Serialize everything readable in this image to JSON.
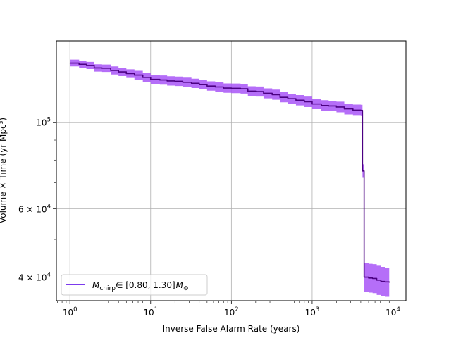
{
  "chart_data": {
    "type": "line",
    "title": "",
    "xlabel": "Inverse False Alarm Rate (years)",
    "ylabel": "Volume × Time (yr Mpc³)",
    "x_scale": "log",
    "y_scale": "log",
    "xlim": [
      0.68,
      14500
    ],
    "ylim": [
      34800,
      162000
    ],
    "grid": true,
    "legend_position": "lower-left",
    "x_ticks": [
      {
        "value": 1,
        "base": "10",
        "exp": "0"
      },
      {
        "value": 10,
        "base": "10",
        "exp": "1"
      },
      {
        "value": 100,
        "base": "10",
        "exp": "2"
      },
      {
        "value": 1000,
        "base": "10",
        "exp": "3"
      },
      {
        "value": 10000,
        "base": "10",
        "exp": "4"
      }
    ],
    "y_ticks": [
      {
        "value": 100000,
        "mantissa": "",
        "base": "10",
        "exp": "5"
      },
      {
        "value": 60000,
        "mantissa": "6 × ",
        "base": "10",
        "exp": "4"
      },
      {
        "value": 40000,
        "mantissa": "4 × ",
        "base": "10",
        "exp": "4"
      }
    ],
    "series": [
      {
        "name": "M_chirp ∈ [0.80, 1.30] M⊙",
        "legend_label": {
          "m": "M",
          "m_sub": "chirp",
          "range": "∈ [0.80, 1.30]",
          "msun": "M",
          "msun_sub": "⊙"
        },
        "color": "#4b0082",
        "band_color": "#a855f7",
        "x": [
          1.0,
          1.3,
          1.6,
          2.0,
          2.5,
          3.2,
          4.0,
          5.0,
          6.3,
          8.0,
          10.0,
          13.0,
          16.0,
          20.0,
          25.0,
          32.0,
          40.0,
          50.0,
          63.0,
          80.0,
          100.0,
          130.0,
          160.0,
          200.0,
          250.0,
          320.0,
          400.0,
          500.0,
          630.0,
          800.0,
          1000.0,
          1300.0,
          1600.0,
          2000.0,
          2500.0,
          3200.0,
          4000.0,
          4200.0,
          4400.0,
          5000.0,
          5600.0,
          6300.0,
          7100.0,
          8000.0,
          9000.0
        ],
        "y": [
          142000,
          141000,
          140000,
          138000,
          137800,
          136000,
          134800,
          133500,
          132300,
          130500,
          129000,
          128500,
          127800,
          127500,
          126800,
          126000,
          125000,
          124000,
          123300,
          122500,
          122300,
          122000,
          120300,
          120000,
          118800,
          117800,
          116000,
          115000,
          114000,
          113000,
          111500,
          110500,
          110200,
          109500,
          108300,
          107500,
          107400,
          75000,
          40000,
          39800,
          39700,
          39300,
          39000,
          38900,
          38800
        ],
        "y_lower": [
          139300,
          138300,
          137100,
          135100,
          134800,
          132800,
          131500,
          130100,
          128800,
          127000,
          125600,
          125000,
          124300,
          124000,
          123400,
          122500,
          121600,
          120600,
          120000,
          119100,
          118900,
          118600,
          116900,
          116500,
          115300,
          114300,
          112600,
          111600,
          110600,
          109500,
          108100,
          107100,
          106800,
          106100,
          104800,
          104000,
          103800,
          72000,
          36700,
          36500,
          36400,
          36000,
          35700,
          35600,
          35500
        ],
        "y_upper": [
          145000,
          144000,
          143000,
          141000,
          140800,
          139300,
          138100,
          136900,
          135700,
          134100,
          132600,
          132000,
          131400,
          131100,
          130300,
          129500,
          128600,
          127500,
          126800,
          125900,
          125800,
          125500,
          123800,
          123600,
          122300,
          121400,
          119600,
          118500,
          117500,
          116500,
          115000,
          114000,
          113700,
          113000,
          111800,
          111100,
          111000,
          78000,
          43500,
          43300,
          43200,
          42800,
          42500,
          42300,
          42200
        ]
      }
    ]
  }
}
